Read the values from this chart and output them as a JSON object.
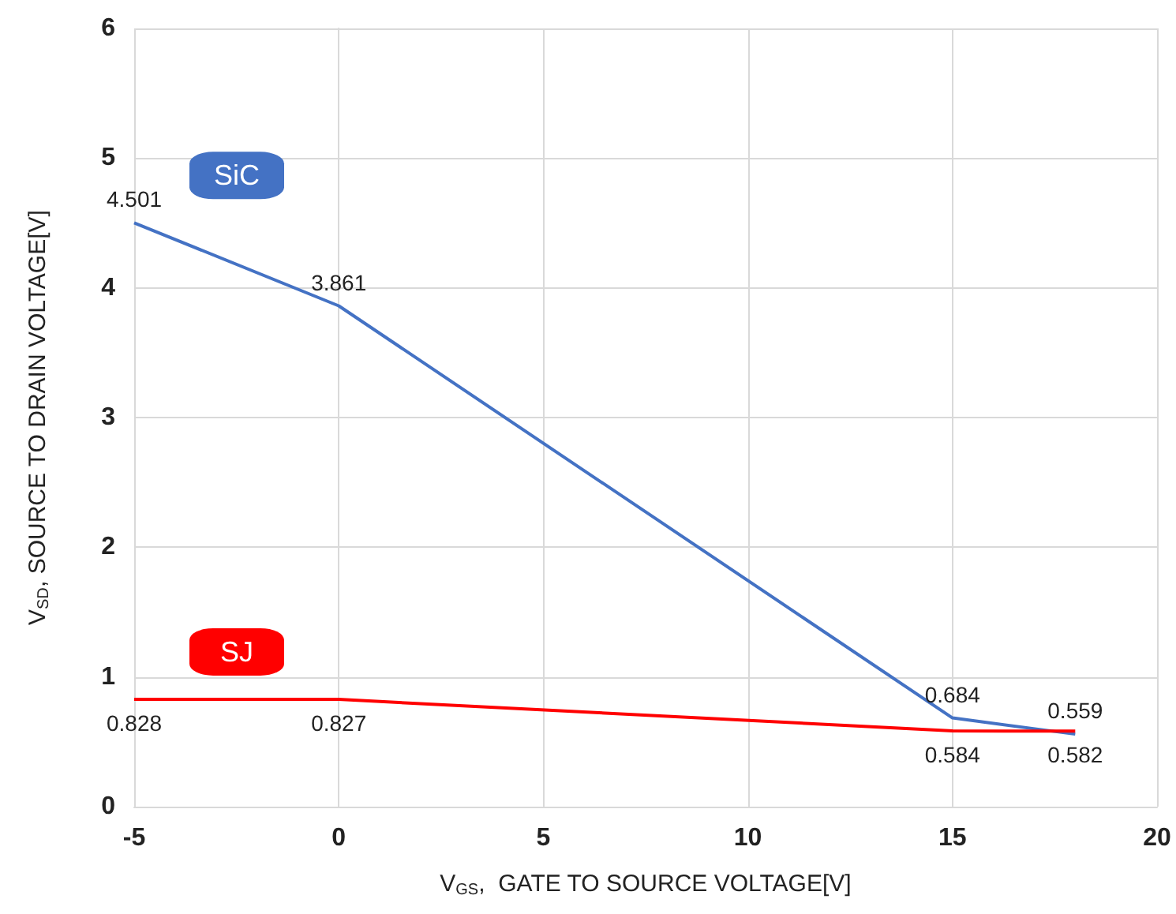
{
  "chart_data": {
    "type": "line",
    "xlabel": "V$_{GS}$,  GATE TO SOURCE VOLTAGE[V]",
    "ylabel": "V$_{SD}$, SOURCE TO DRAIN VOLTAGE[V]",
    "x": [
      -5,
      0,
      15,
      18
    ],
    "series": [
      {
        "name": "SiC",
        "color": "#4472c4",
        "values": [
          4.501,
          3.861,
          0.684,
          0.559
        ]
      },
      {
        "name": "SJ",
        "color": "#ff0000",
        "values": [
          0.828,
          0.827,
          0.584,
          0.582
        ]
      }
    ],
    "xlim": [
      -5,
      20
    ],
    "xticks": [
      -5,
      0,
      5,
      10,
      15,
      20
    ],
    "ylim": [
      0,
      6
    ],
    "yticks": [
      0,
      1,
      2,
      3,
      4,
      5,
      6
    ],
    "grid": true,
    "data_labels": true,
    "marker": "none",
    "line_style": "solid",
    "legend": false
  }
}
